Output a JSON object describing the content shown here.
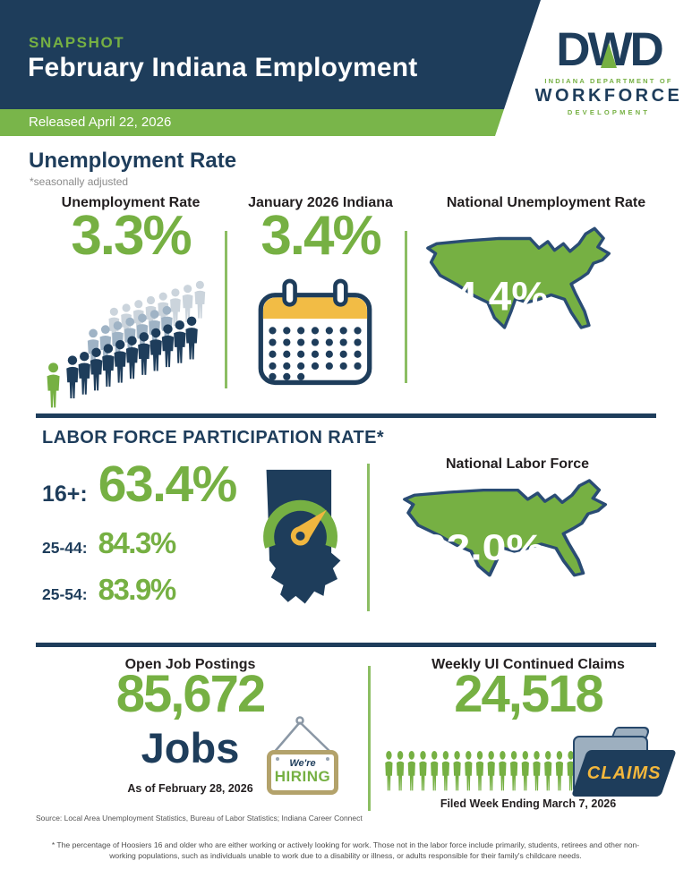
{
  "header": {
    "eyebrow": "SNAPSHOT",
    "title": "February Indiana Employment",
    "released": "Released April 22, 2026",
    "logo": {
      "acronym": "DWD",
      "dept": "INDIANA DEPARTMENT OF",
      "org": "WORKFORCE",
      "sub": "DEVELOPMENT"
    }
  },
  "unemployment": {
    "title": "Unemployment Rate",
    "note": "*seasonally adjusted",
    "cols": [
      {
        "label": "Unemployment Rate",
        "value": "3.3%"
      },
      {
        "label": "January 2026 Indiana",
        "value": "3.4%"
      },
      {
        "label": "National Unemployment Rate",
        "value": "4.4%"
      }
    ]
  },
  "labor_force": {
    "title": "LABOR FORCE PARTICIPATION RATE*",
    "rows": [
      {
        "label": "16+:",
        "value": "63.4%"
      },
      {
        "label": "25-44:",
        "value": "84.3%"
      },
      {
        "label": "25-54:",
        "value": "83.9%"
      }
    ],
    "national": {
      "label": "National Labor Force",
      "value": "62.0%"
    }
  },
  "jobs": {
    "label": "Open Job Postings",
    "value": "85,672",
    "unit": "Jobs",
    "as_of": "As of February 28, 2026",
    "sign": {
      "line1": "We're",
      "line2": "HIRING"
    }
  },
  "claims": {
    "label": "Weekly UI Continued Claims",
    "value": "24,518",
    "folder_label": "CLAIMS",
    "as_of": "Filed Week Ending March 7, 2026"
  },
  "footer": {
    "source": "Source: Local Area Unemployment Statistics, Bureau of Labor Statistics; Indiana Career Connect",
    "footnote": "* The percentage of Hoosiers 16 and older who are either working or actively looking for work. Those not in the labor force include primarily, students, retirees and other non-working populations, such as individuals unable to work due to a disability or illness, or adults responsible for their family's childcare needs."
  },
  "colors": {
    "navy": "#1E3D5B",
    "green": "#76B043",
    "gold": "#F0B63F"
  }
}
